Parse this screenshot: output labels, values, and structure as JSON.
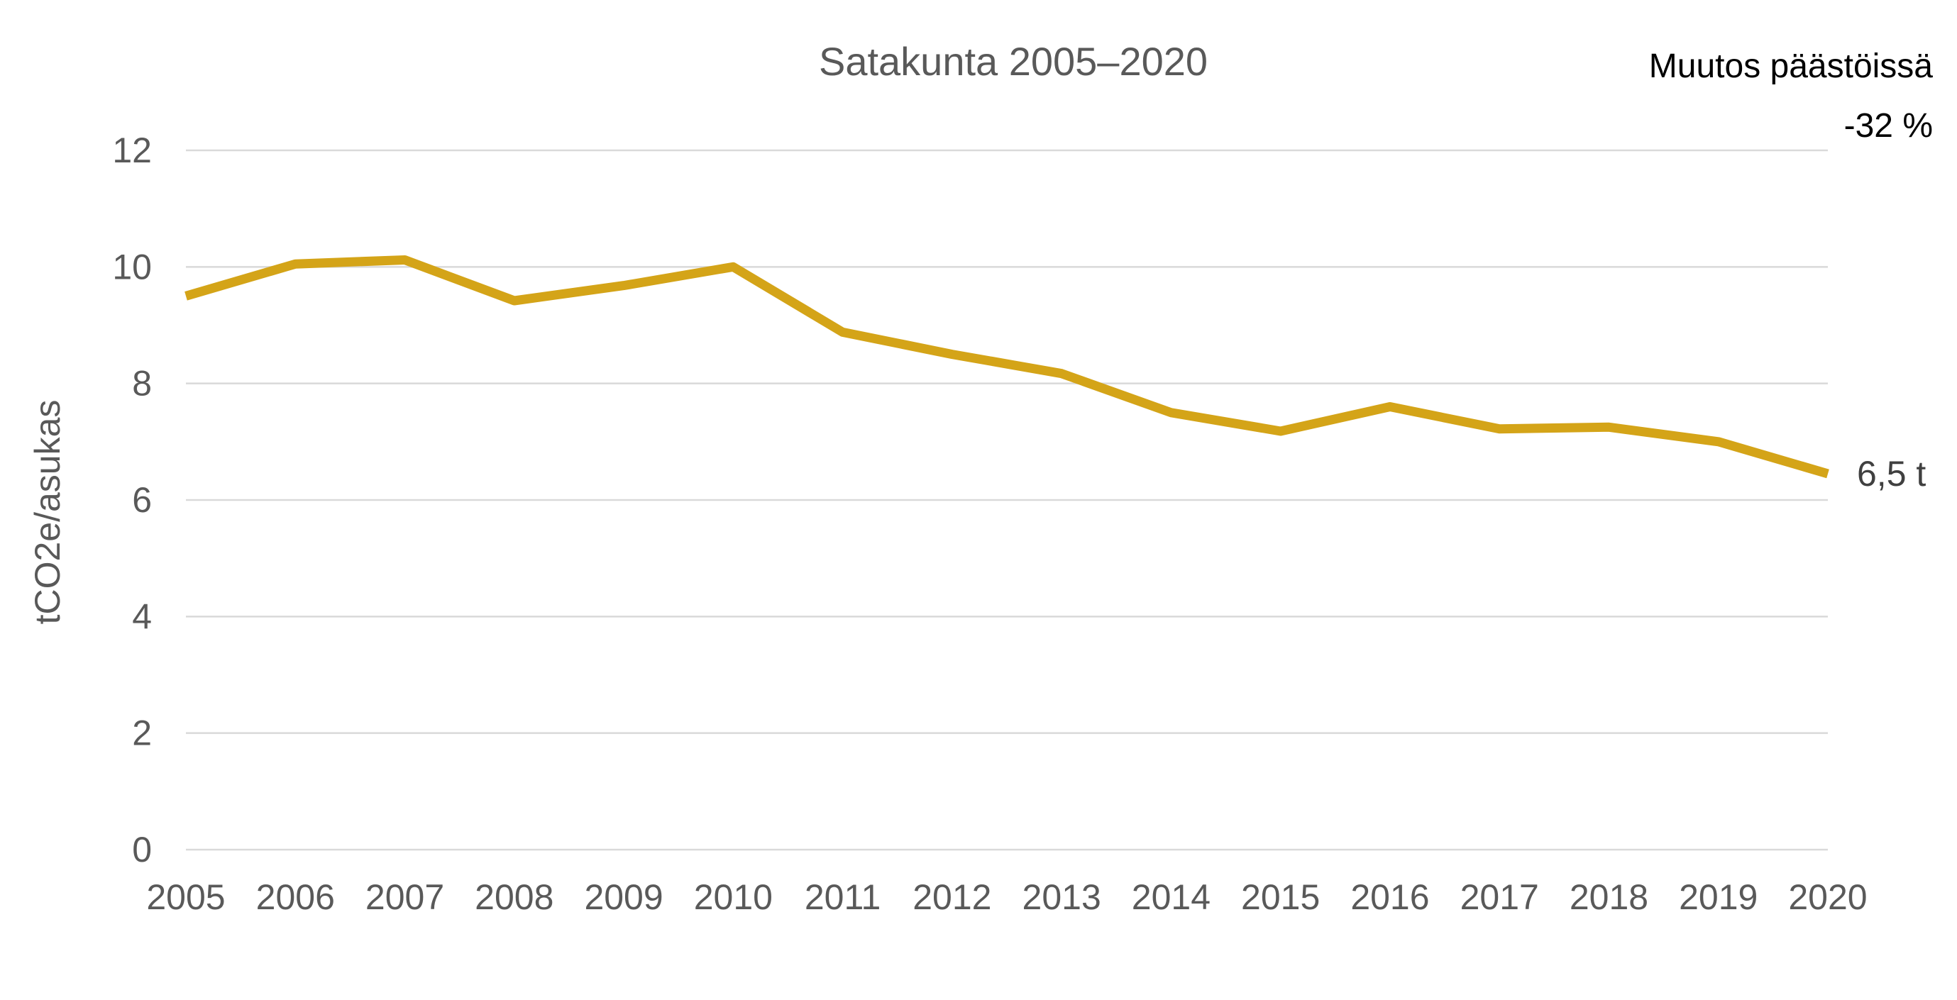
{
  "chart_data": {
    "type": "line",
    "title": "Satakunta 2005–2020",
    "xlabel": "",
    "ylabel": "tCO2e/asukas",
    "categories": [
      "2005",
      "2006",
      "2007",
      "2008",
      "2009",
      "2010",
      "2011",
      "2012",
      "2013",
      "2014",
      "2015",
      "2016",
      "2017",
      "2018",
      "2019",
      "2020"
    ],
    "series": [
      {
        "values": [
          9.5,
          10.05,
          10.12,
          9.42,
          9.68,
          10.0,
          8.88,
          8.5,
          8.17,
          7.5,
          7.18,
          7.6,
          7.22,
          7.25,
          7.0,
          6.45
        ]
      }
    ],
    "ylim": [
      0,
      12
    ],
    "yticks": [
      "0",
      "2",
      "4",
      "6",
      "8",
      "10",
      "12"
    ],
    "grid": true,
    "legend": "none",
    "colors": {
      "line": "#D4A418",
      "grid": "#D9D9D9",
      "text": "#595959"
    },
    "annotations": {
      "change_label": "Muutos päästöissä",
      "change_value": "-32 %",
      "end_label": "6,5 t"
    }
  }
}
